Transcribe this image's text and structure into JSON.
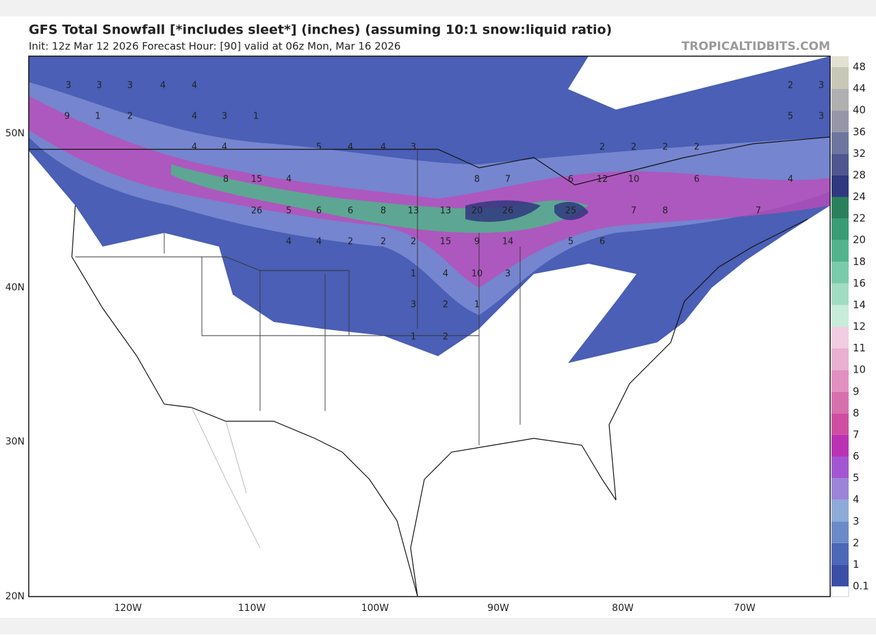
{
  "header": {
    "title": "GFS Total Snowfall [*includes sleet*] (inches) (assuming 10:1 snow:liquid ratio)",
    "subtitle": "Init: 12z Mar 12 2026   Forecast Hour: [90]   valid at 06z Mon, Mar 16 2026",
    "site": "TROPICALTIDBITS.COM"
  },
  "map": {
    "lat_labels": [
      "50N",
      "40N",
      "30N",
      "20N"
    ],
    "lon_labels": [
      "120W",
      "110W",
      "100W",
      "90W",
      "80W",
      "70W"
    ],
    "point_labels": [
      3,
      3,
      3,
      4,
      4,
      9,
      1,
      2,
      4,
      3,
      1,
      4,
      4,
      5,
      4,
      4,
      3,
      8,
      15,
      4,
      26,
      5,
      6,
      6,
      8,
      13,
      13,
      20,
      26,
      25,
      4,
      4,
      2,
      2,
      2,
      15,
      9,
      14,
      5,
      6,
      1,
      4,
      10,
      3,
      3,
      2,
      1,
      1,
      2,
      12,
      10,
      6,
      4,
      7,
      8,
      7,
      2,
      2,
      2,
      2,
      5,
      3,
      3,
      2,
      8,
      7,
      6
    ]
  },
  "colorbar": {
    "labels": [
      0.1,
      1,
      2,
      3,
      4,
      5,
      6,
      7,
      8,
      9,
      10,
      11,
      12,
      14,
      16,
      18,
      20,
      22,
      24,
      28,
      32,
      36,
      40,
      44,
      48
    ],
    "colors": [
      "#3b4ea6",
      "#4d68b8",
      "#6a8ac8",
      "#8eaad8",
      "#9c84d8",
      "#a456d2",
      "#bb32b4",
      "#cf4ea2",
      "#d870ae",
      "#e290c0",
      "#e9b0d2",
      "#f1cde2",
      "#c9ecd9",
      "#a2dcc2",
      "#7acbab",
      "#52b48d",
      "#389c75",
      "#2a805d",
      "#30387f",
      "#4f5690",
      "#6e76a0",
      "#9696a8",
      "#b0b0b0",
      "#c8c8b8",
      "#e2e2d4"
    ]
  }
}
